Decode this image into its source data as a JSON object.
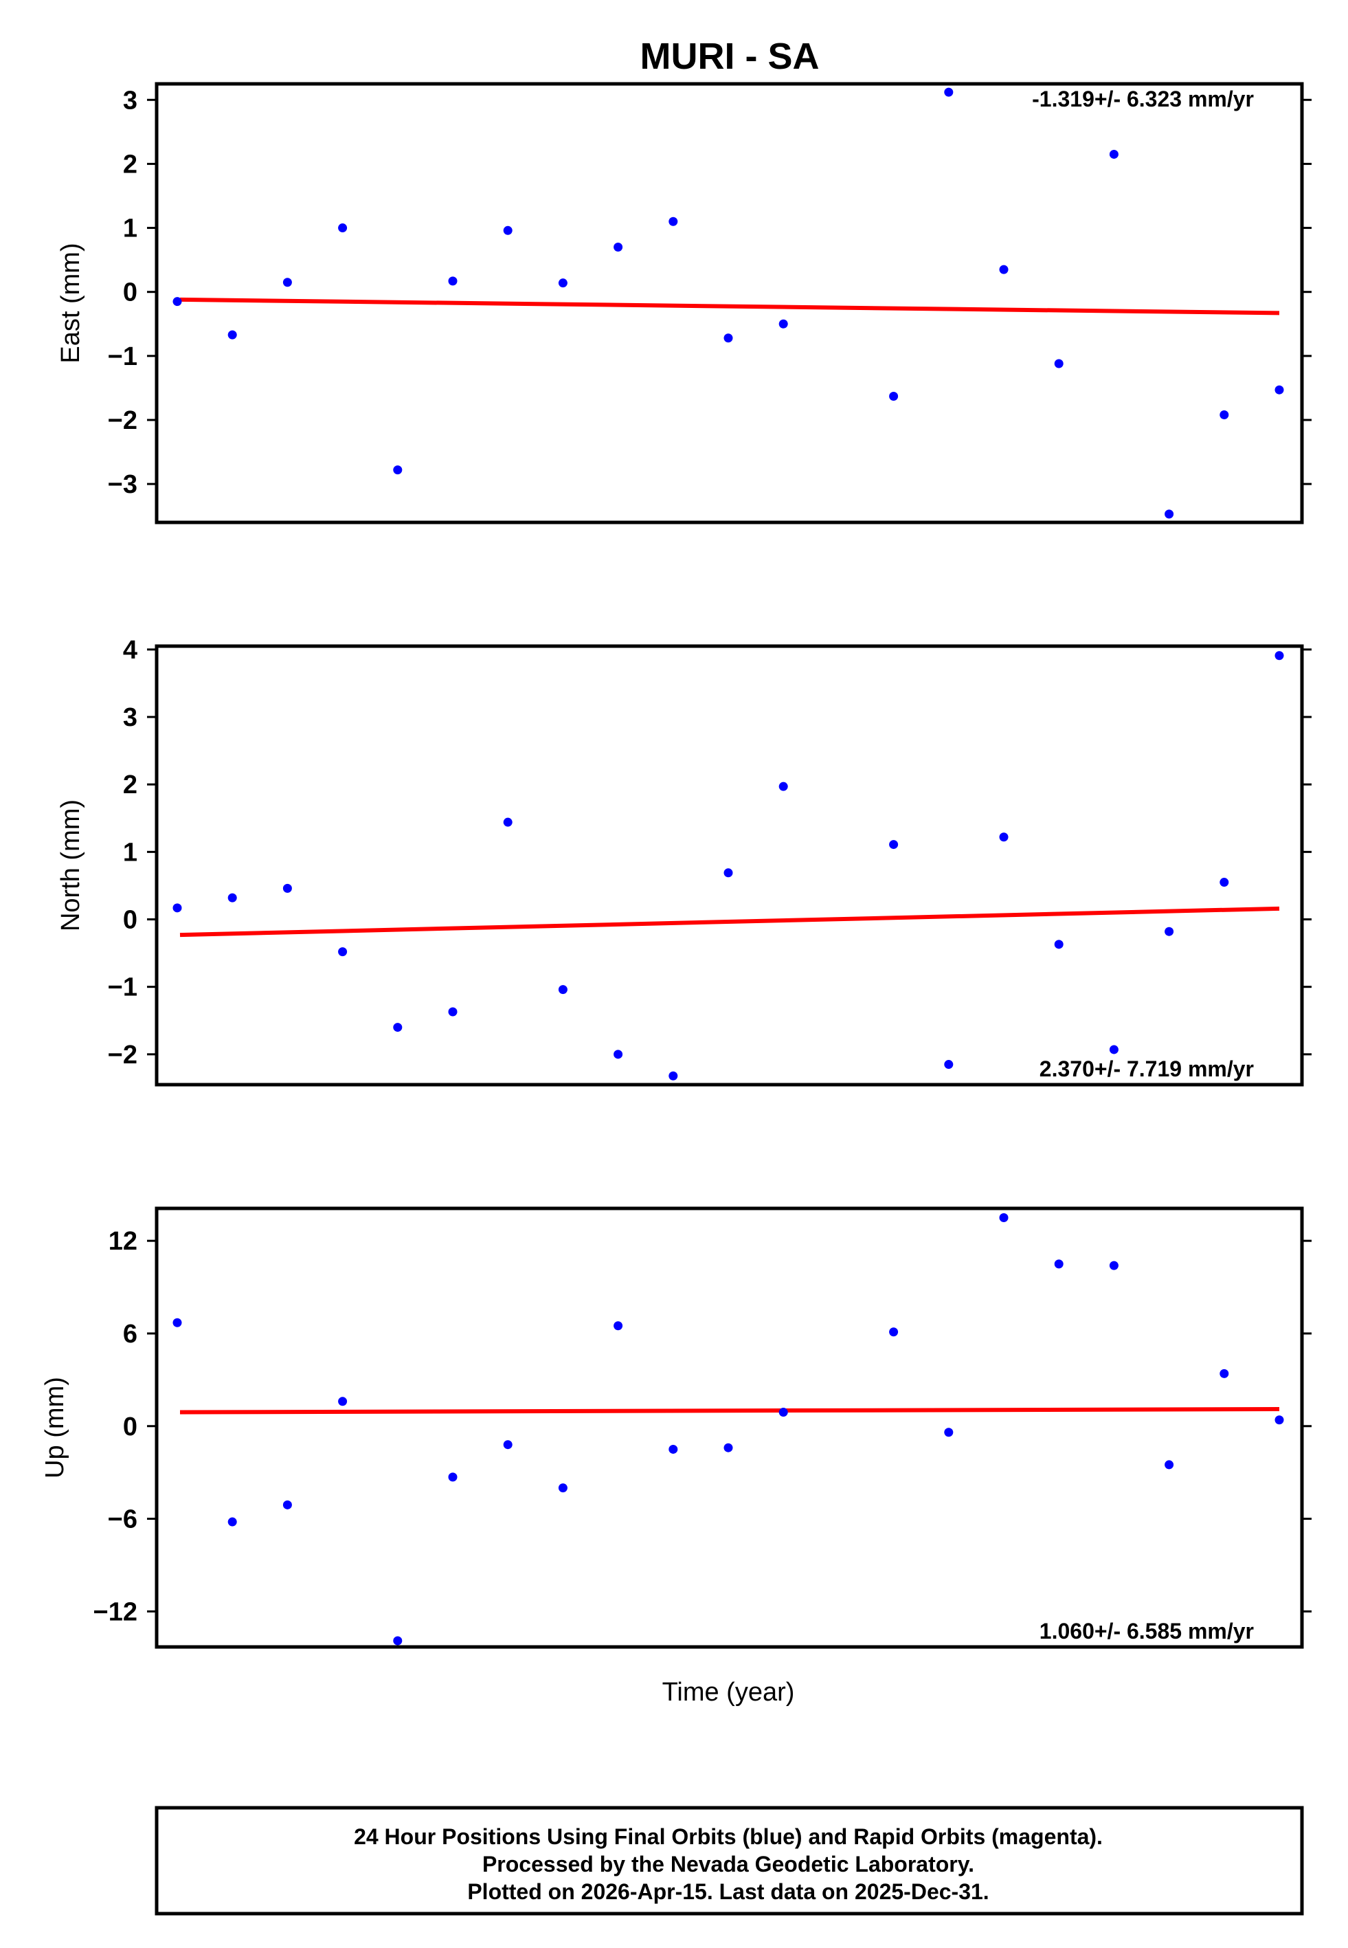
{
  "colors": {
    "points": "#0000ff",
    "trend": "#ff0000",
    "frame": "#000000"
  },
  "chart_data": {
    "type": "scatter",
    "title": "MURI - SA",
    "xlabel": "Time (year)",
    "x": [
      1,
      2,
      3,
      4,
      5,
      6,
      7,
      8,
      9,
      10,
      11,
      12,
      13,
      14,
      15,
      16,
      17,
      18,
      19,
      20,
      21
    ],
    "panels": [
      {
        "id": "east",
        "ylabel": "East (mm)",
        "ylim": [
          -3.6,
          3.25
        ],
        "yticks": [
          -3,
          -2,
          -1,
          0,
          1,
          2,
          3
        ],
        "tick_labels": [
          "−3",
          "−2",
          "−1",
          "0",
          "1",
          "2",
          "3"
        ],
        "rate_label": "-1.319+/- 6.323 mm/yr",
        "rate_position": "top-right",
        "values": [
          -0.15,
          -0.67,
          0.15,
          1.0,
          -2.78,
          0.17,
          0.96,
          0.14,
          0.7,
          1.1,
          -0.72,
          -0.5,
          null,
          -1.63,
          3.12,
          0.35,
          -1.12,
          2.15,
          -3.47,
          -1.92,
          -1.53
        ],
        "trend": [
          -0.12,
          -0.33
        ]
      },
      {
        "id": "north",
        "ylabel": "North (mm)",
        "ylim": [
          -2.45,
          4.05
        ],
        "yticks": [
          -2,
          -1,
          0,
          1,
          2,
          3,
          4
        ],
        "tick_labels": [
          "−2",
          "−1",
          "0",
          "1",
          "2",
          "3",
          "4"
        ],
        "rate_label": "2.370+/- 7.719 mm/yr",
        "rate_position": "bottom-right",
        "values": [
          0.17,
          0.32,
          0.46,
          -0.48,
          -1.6,
          -1.37,
          1.44,
          -1.04,
          -2.0,
          -2.32,
          0.69,
          1.97,
          null,
          1.11,
          -2.15,
          1.22,
          -0.37,
          -1.93,
          -0.18,
          0.55,
          3.91
        ],
        "trend": [
          -0.23,
          0.16
        ]
      },
      {
        "id": "up",
        "ylabel": "Up (mm)",
        "ylim": [
          -14.3,
          14.1
        ],
        "yticks": [
          -12,
          -6,
          0,
          6,
          12
        ],
        "tick_labels": [
          "−12",
          "−6",
          "0",
          "6",
          "12"
        ],
        "rate_label": "1.060+/- 6.585 mm/yr",
        "rate_position": "bottom-right",
        "values": [
          6.7,
          -6.2,
          -5.1,
          1.6,
          -13.9,
          -3.3,
          -1.2,
          -4.0,
          6.5,
          -1.5,
          -1.4,
          0.9,
          null,
          6.1,
          -0.4,
          13.5,
          10.5,
          10.4,
          -2.5,
          3.4,
          0.4
        ],
        "trend": [
          0.9,
          1.1
        ]
      }
    ],
    "grid": false,
    "legend": "none"
  },
  "footer": {
    "line1": "24 Hour Positions Using Final Orbits (blue) and Rapid Orbits (magenta).",
    "line2": "Processed by the Nevada Geodetic Laboratory.",
    "line3": "Plotted on 2026-Apr-15. Last data on 2025-Dec-31."
  }
}
